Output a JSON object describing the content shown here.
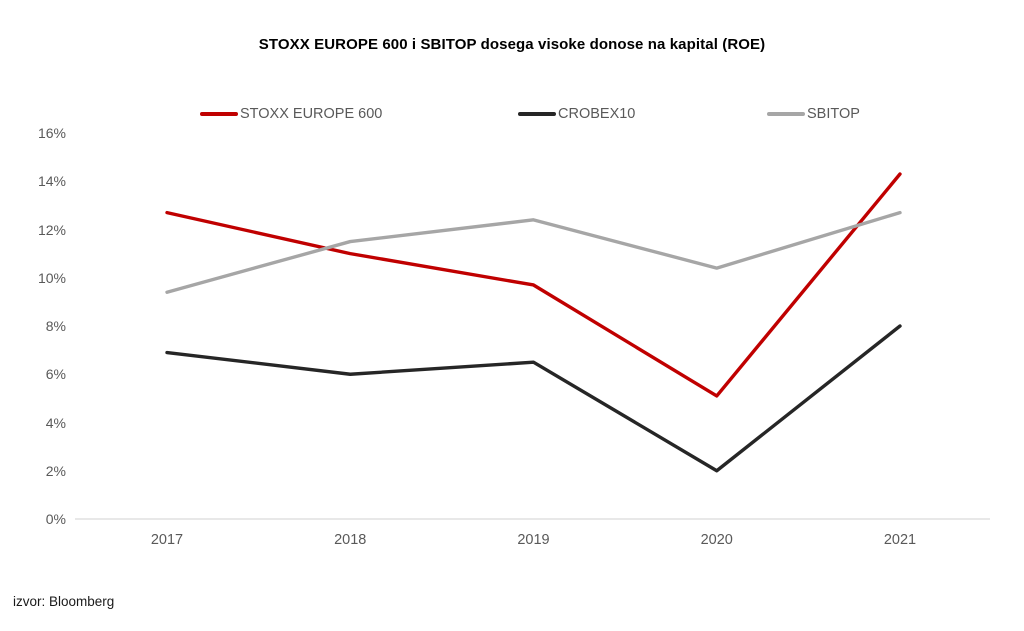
{
  "chart_data": {
    "type": "line",
    "title": "STOXX EUROPE 600 i SBITOP dosega visoke donose na kapital (ROE)",
    "categories": [
      "2017",
      "2018",
      "2019",
      "2020",
      "2021"
    ],
    "series": [
      {
        "name": "STOXX EUROPE 600",
        "color": "#C00000",
        "values": [
          12.7,
          11.0,
          9.7,
          5.1,
          14.3
        ]
      },
      {
        "name": "CROBEX10",
        "color": "#262626",
        "values": [
          6.9,
          6.0,
          6.5,
          2.0,
          8.0
        ]
      },
      {
        "name": "SBITOP",
        "color": "#A6A6A6",
        "values": [
          9.4,
          11.5,
          12.4,
          10.4,
          12.7
        ]
      }
    ],
    "xlabel": "",
    "ylabel": "",
    "ylim": [
      0,
      16
    ],
    "ytick_values": [
      0,
      2,
      4,
      6,
      8,
      10,
      12,
      14,
      16
    ],
    "ytick_labels": [
      "0%",
      "2%",
      "4%",
      "6%",
      "8%",
      "10%",
      "12%",
      "14%",
      "16%"
    ],
    "grid": false,
    "legend_position": "top",
    "axis_line_color": "#D9D9D9",
    "label_color": "#595959",
    "source": "izvor: Bloomberg"
  }
}
